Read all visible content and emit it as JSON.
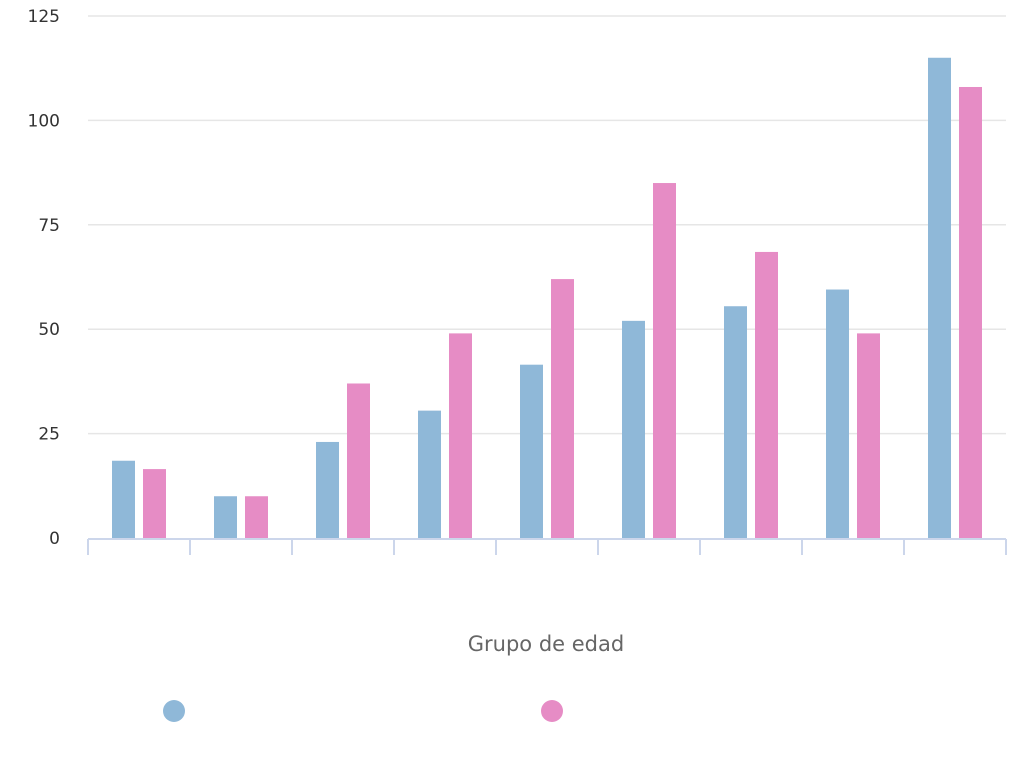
{
  "chart_data": {
    "type": "bar",
    "title": "",
    "xlabel": "Grupo de edad",
    "ylabel": "",
    "ylim": [
      0,
      125
    ],
    "yticks": [
      0,
      25,
      50,
      75,
      100,
      125
    ],
    "grid": true,
    "legend_position": "bottom",
    "categories": [
      "",
      "",
      "",
      "",
      "",
      "",
      "",
      "",
      ""
    ],
    "series": [
      {
        "color": "#8fb8d8",
        "values": [
          18.5,
          10,
          23,
          30.5,
          41.5,
          52,
          55.5,
          59.5,
          115
        ]
      },
      {
        "color": "#e68cc5",
        "values": [
          16.5,
          10,
          37,
          49,
          62,
          85,
          68.5,
          49,
          108
        ]
      }
    ]
  }
}
